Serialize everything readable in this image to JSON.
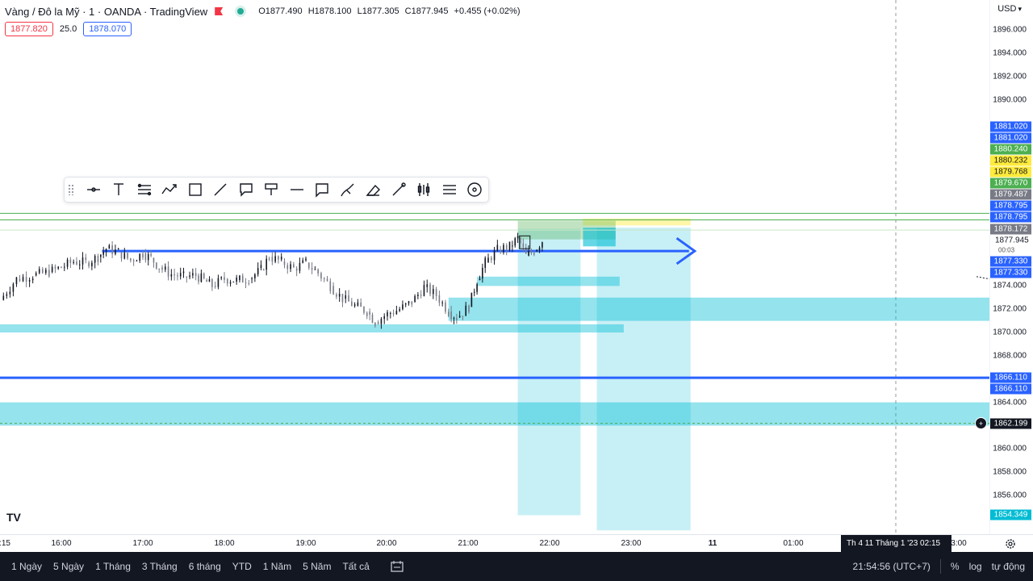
{
  "header": {
    "title": "Vàng / Đô la Mỹ · 1 · OANDA · TradingView",
    "ohlc": {
      "open": "O1877.490",
      "high": "H1878.100",
      "low": "L1877.305",
      "close": "C1877.945",
      "change": "+0.455 (+0.02%)"
    },
    "sell_price": "1877.820",
    "spread": "25.0",
    "buy_price": "1878.070"
  },
  "toolbar": {
    "tools": [
      "drag-handle",
      "horizontal-ray",
      "text",
      "settings-lines",
      "path",
      "rectangle",
      "trend-line",
      "callout",
      "paint-bucket",
      "line-style",
      "comment",
      "brush",
      "eraser",
      "pen",
      "indicators",
      "visual-order",
      "more"
    ]
  },
  "price_scale": {
    "currency": "USD",
    "labels": [
      "1896.000",
      "1894.000",
      "1892.000",
      "1890.000",
      "1874.000",
      "1872.000",
      "1870.000",
      "1868.000",
      "1864.000",
      "1860.000",
      "1858.000",
      "1856.000"
    ],
    "tags": [
      {
        "text": "1881.020",
        "color": "#2962ff"
      },
      {
        "text": "1881.020",
        "color": "#2962ff"
      },
      {
        "text": "1880.240",
        "color": "#4caf50"
      },
      {
        "text": "1880.232",
        "color": "#ffeb3b"
      },
      {
        "text": "1879.768",
        "color": "#ffeb3b"
      },
      {
        "text": "1879.670",
        "color": "#4caf50"
      },
      {
        "text": "1879.487",
        "color": "#787b86"
      },
      {
        "text": "1878.795",
        "color": "#2962ff"
      },
      {
        "text": "1878.795",
        "color": "#2962ff"
      },
      {
        "text": "1878.172",
        "color": "#787b86"
      },
      {
        "text": "1877.330",
        "color": "#2962ff"
      },
      {
        "text": "1877.330",
        "color": "#2962ff"
      },
      {
        "text": "1866.110",
        "color": "#2962ff"
      },
      {
        "text": "1866.110",
        "color": "#2962ff"
      },
      {
        "text": "1862.199",
        "color": "#131722"
      },
      {
        "text": "1854.349",
        "color": "#00bcd4"
      }
    ],
    "last_price": "1877.945",
    "countdown": "00:03"
  },
  "time_axis": {
    "labels": [
      ":15",
      "16:00",
      "17:00",
      "18:00",
      "19:00",
      "20:00",
      "21:00",
      "22:00",
      "23:00",
      "11",
      "01:00",
      "3:00"
    ],
    "crosshair": "Th 4 11 Tháng 1 '23   02:15"
  },
  "bottom_bar": {
    "ranges": [
      "1 Ngày",
      "5 Ngày",
      "1 Tháng",
      "3 Tháng",
      "6 tháng",
      "YTD",
      "1 Năm",
      "5 Năm",
      "Tất cả"
    ],
    "clock": "21:54:56 (UTC+7)",
    "percent": "%",
    "log": "log",
    "auto": "tự động"
  },
  "colors": {
    "up": "#131722",
    "down": "#787b86",
    "zone": "#00bcd4",
    "line_blue": "#2962ff"
  },
  "chart_data": {
    "type": "candlestick",
    "x": "time",
    "ylim": [
      1853.0,
      1897.0
    ],
    "key_levels": {
      "horizontal_blue_1": 1877.33,
      "horizontal_blue_2": 1866.11,
      "green_line_1": 1880.24,
      "green_line_2": 1879.67,
      "dashed_line": 1862.199
    },
    "close_path": [
      [
        15.25,
        1872.8
      ],
      [
        15.45,
        1874.6
      ],
      [
        15.65,
        1874.9
      ],
      [
        15.85,
        1875.2
      ],
      [
        16.0,
        1875.6
      ],
      [
        16.15,
        1876.1
      ],
      [
        16.3,
        1876.0
      ],
      [
        16.45,
        1876.5
      ],
      [
        16.55,
        1877.2
      ],
      [
        16.7,
        1876.9
      ],
      [
        16.85,
        1876.2
      ],
      [
        17.0,
        1876.8
      ],
      [
        17.1,
        1876.4
      ],
      [
        17.2,
        1875.6
      ],
      [
        17.35,
        1875.0
      ],
      [
        17.5,
        1874.8
      ],
      [
        17.65,
        1874.9
      ],
      [
        17.75,
        1874.5
      ],
      [
        17.85,
        1874.0
      ],
      [
        18.0,
        1874.6
      ],
      [
        18.15,
        1874.5
      ],
      [
        18.3,
        1874.6
      ],
      [
        18.45,
        1875.4
      ],
      [
        18.55,
        1876.5
      ],
      [
        18.7,
        1876.1
      ],
      [
        18.85,
        1875.5
      ],
      [
        19.0,
        1876.0
      ],
      [
        19.15,
        1875.1
      ],
      [
        19.3,
        1874.0
      ],
      [
        19.45,
        1872.9
      ],
      [
        19.6,
        1872.3
      ],
      [
        19.75,
        1871.8
      ],
      [
        19.85,
        1870.9
      ],
      [
        20.0,
        1871.6
      ],
      [
        20.15,
        1872.0
      ],
      [
        20.3,
        1872.6
      ],
      [
        20.45,
        1873.9
      ],
      [
        20.6,
        1873.2
      ],
      [
        20.75,
        1871.8
      ],
      [
        20.85,
        1871.3
      ],
      [
        21.0,
        1872.2
      ],
      [
        21.1,
        1874.5
      ],
      [
        21.2,
        1876.0
      ],
      [
        21.35,
        1877.1
      ],
      [
        21.5,
        1877.4
      ],
      [
        21.6,
        1878.1
      ],
      [
        21.7,
        1876.6
      ],
      [
        21.8,
        1877.0
      ],
      [
        21.9,
        1877.9
      ]
    ],
    "zones": [
      {
        "type": "horizontal",
        "from_time": 20.75,
        "to_time": 27.4,
        "low": 1871.0,
        "high": 1873.0
      },
      {
        "type": "horizontal",
        "from_time": 14.9,
        "to_time": 22.9,
        "low": 1870.0,
        "high": 1870.7
      },
      {
        "type": "horizontal",
        "from_time": 21.1,
        "to_time": 22.85,
        "low": 1874.0,
        "high": 1874.8
      },
      {
        "type": "horizontal",
        "from_time": 14.9,
        "to_time": 27.4,
        "low": 1862.0,
        "high": 1864.0
      },
      {
        "type": "vertical",
        "from_time": 21.6,
        "to_time": 22.37,
        "low": 1854.3,
        "high": 1878.9
      },
      {
        "type": "vertical",
        "from_time": 22.57,
        "to_time": 23.72,
        "low": 1853.0,
        "high": 1879.0
      }
    ]
  }
}
